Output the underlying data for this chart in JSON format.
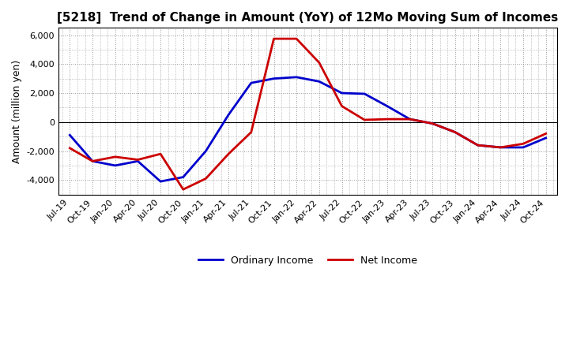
{
  "title": "[5218]  Trend of Change in Amount (YoY) of 12Mo Moving Sum of Incomes",
  "ylabel": "Amount (million yen)",
  "xlabels": [
    "Jul-19",
    "Oct-19",
    "Jan-20",
    "Apr-20",
    "Jul-20",
    "Oct-20",
    "Jan-21",
    "Apr-21",
    "Jul-21",
    "Oct-21",
    "Jan-22",
    "Apr-22",
    "Jul-22",
    "Oct-22",
    "Jan-23",
    "Apr-23",
    "Jul-23",
    "Oct-23",
    "Jan-24",
    "Apr-24",
    "Jul-24",
    "Oct-24"
  ],
  "ordinary_income": [
    -900,
    -2700,
    -3000,
    -2700,
    -4100,
    -3800,
    -2000,
    500,
    2700,
    3000,
    3100,
    2800,
    2000,
    1950,
    1100,
    200,
    -100,
    -700,
    -1600,
    -1750,
    -1750,
    -1100
  ],
  "net_income": [
    -1800,
    -2700,
    -2400,
    -2600,
    -2200,
    -4650,
    -3900,
    -2200,
    -700,
    5750,
    5750,
    4100,
    1100,
    150,
    200,
    200,
    -100,
    -700,
    -1600,
    -1750,
    -1500,
    -800
  ],
  "ordinary_color": "#0000cc",
  "net_color": "#cc0000",
  "ylim": [
    -5000,
    6500
  ],
  "yticks": [
    -4000,
    -2000,
    0,
    2000,
    4000,
    6000
  ],
  "background_color": "#ffffff",
  "grid_color": "#999999",
  "legend_ordinary": "Ordinary Income",
  "legend_net": "Net Income",
  "title_fontsize": 11,
  "ylabel_fontsize": 9,
  "tick_fontsize": 8,
  "legend_fontsize": 9,
  "linewidth": 2.0
}
